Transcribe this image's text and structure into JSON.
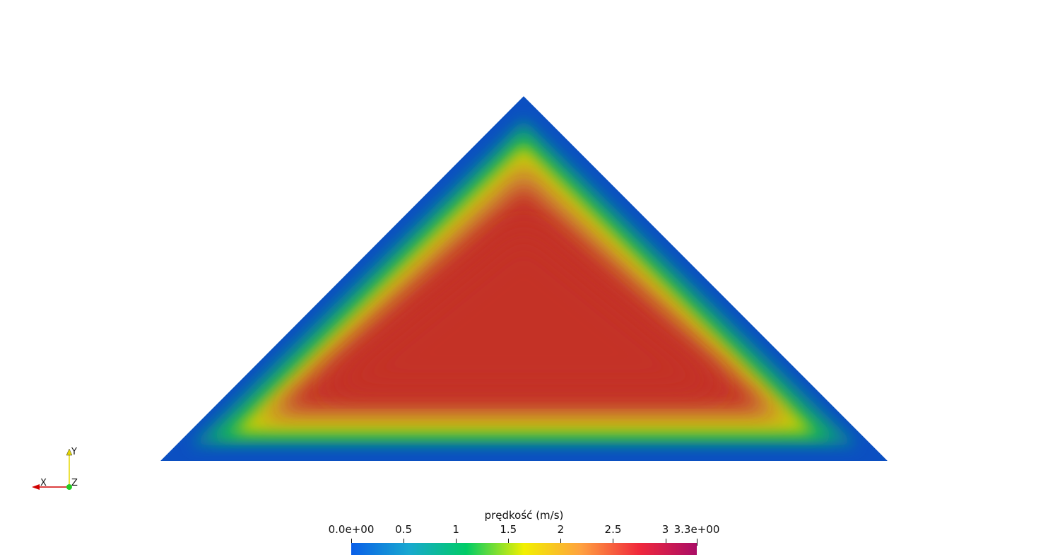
{
  "orientation_axes": {
    "x_label": "X",
    "y_label": "Y",
    "z_label": "Z",
    "x_color": "#d00000",
    "y_color": "#e6d800",
    "z_color": "#22cc22"
  },
  "colorbar": {
    "title": "prędkość (m/s)",
    "min_label": "0.0e+00",
    "max_label": "3.3e+00",
    "min_value": 0.0,
    "max_value": 3.3,
    "ticks": [
      {
        "label": "0.5",
        "value": 0.5
      },
      {
        "label": "1",
        "value": 1.0
      },
      {
        "label": "1.5",
        "value": 1.5
      },
      {
        "label": "2",
        "value": 2.0
      },
      {
        "label": "2.5",
        "value": 2.5
      },
      {
        "label": "3",
        "value": 3.0
      }
    ],
    "colors": [
      "#0a5fe8",
      "#18a8d0",
      "#00cc66",
      "#f2f000",
      "#ffa040",
      "#f0283c",
      "#aa0d66"
    ]
  },
  "field": {
    "core_color": "#c43226",
    "edge_color": "#0b4fc1"
  }
}
